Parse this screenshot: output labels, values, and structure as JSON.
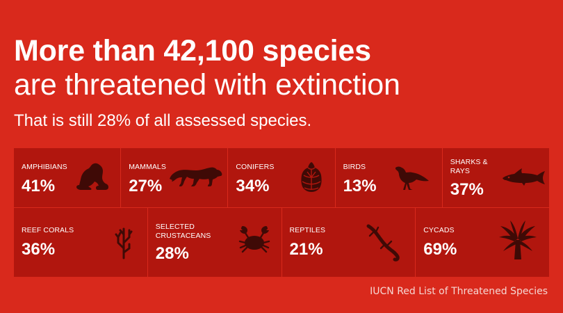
{
  "headline": {
    "line1": "More than 42,100 species",
    "line2": "are threatened with extinction"
  },
  "subtitle": "That is still 28% of all assessed species.",
  "groups_row1": [
    {
      "label": "AMPHIBIANS",
      "percent": "41%",
      "icon": "frog-icon"
    },
    {
      "label": "MAMMALS",
      "percent": "27%",
      "icon": "tiger-icon"
    },
    {
      "label": "CONIFERS",
      "percent": "34%",
      "icon": "pine-cone-icon"
    },
    {
      "label": "BIRDS",
      "percent": "13%",
      "icon": "bird-icon"
    },
    {
      "label": "SHARKS &\nRAYS",
      "percent": "37%",
      "icon": "shark-icon"
    }
  ],
  "groups_row2": [
    {
      "label": "REEF CORALS",
      "percent": "36%",
      "icon": "coral-icon"
    },
    {
      "label": "SELECTED\nCRUSTACEANS",
      "percent": "28%",
      "icon": "crab-icon"
    },
    {
      "label": "REPTILES",
      "percent": "21%",
      "icon": "lizard-icon"
    },
    {
      "label": "CYCADS",
      "percent": "69%",
      "icon": "cycad-palm-icon"
    }
  ],
  "source": "IUCN Red List of Threatened Species",
  "colors": {
    "background": "#d9291c",
    "tile": "#b1160e",
    "icon": "#3f0a06"
  }
}
